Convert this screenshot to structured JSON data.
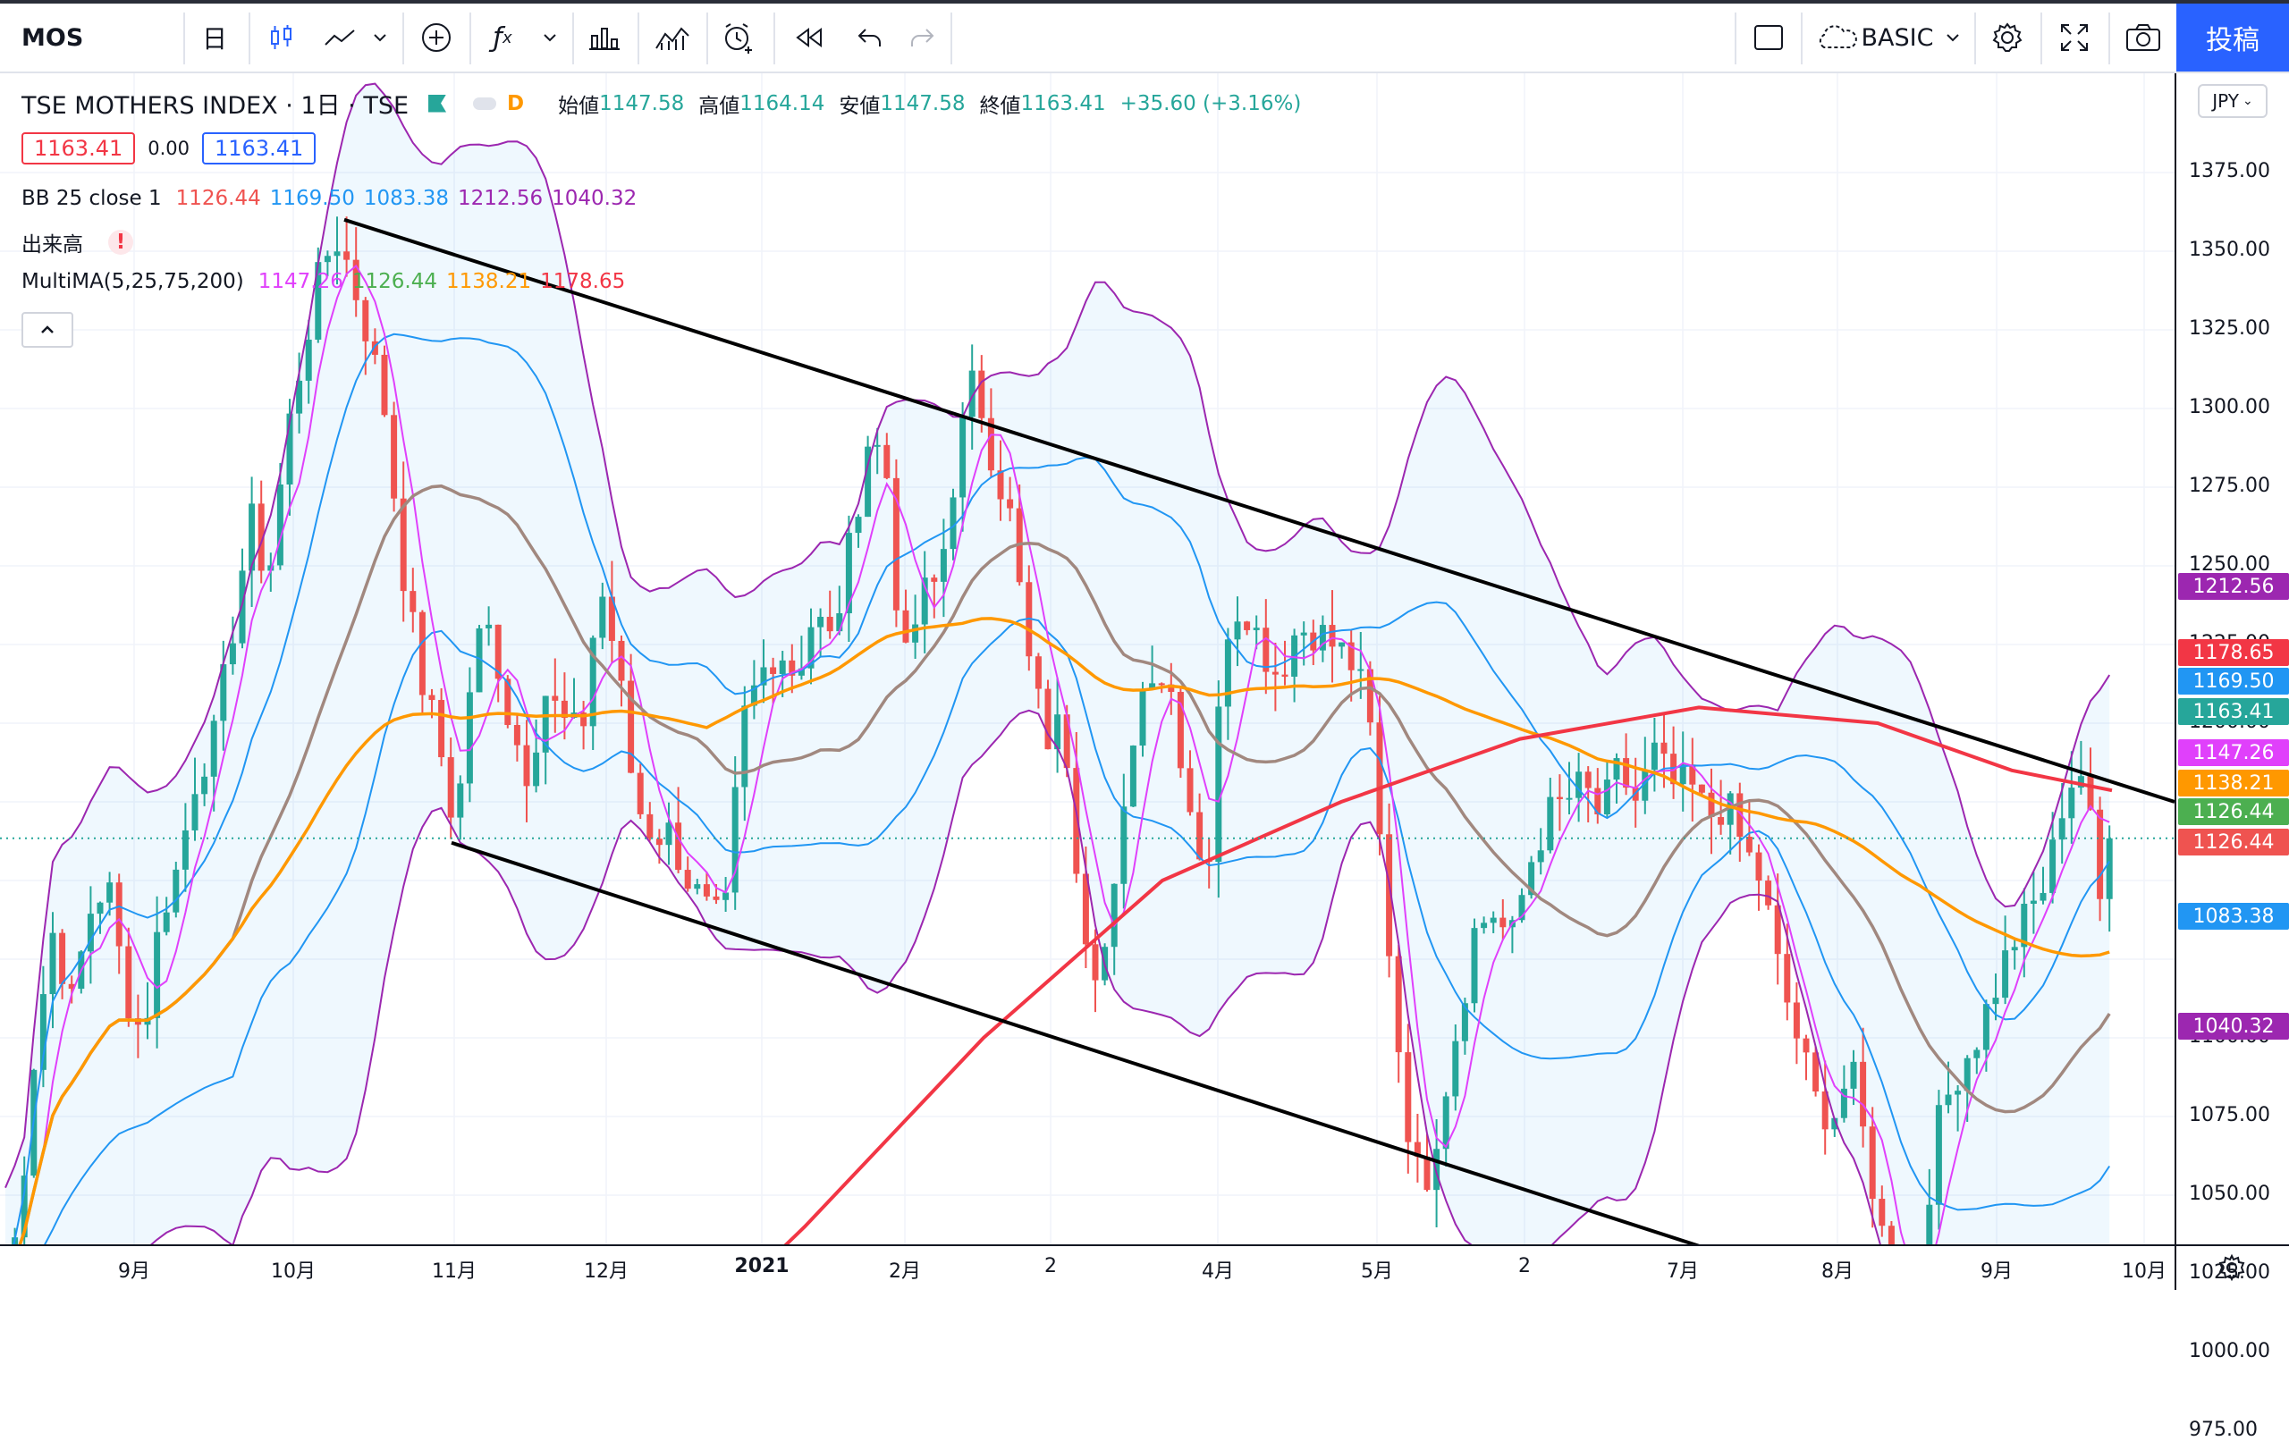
{
  "toolbar": {
    "symbol": "MOS",
    "interval": "日",
    "layout_label": "BASIC",
    "post_label": "投稿"
  },
  "legend": {
    "title": "TSE MOTHERS INDEX · 1日 · TSE",
    "interval_badge": "D",
    "ohlc": [
      {
        "label": "始値",
        "value": "1147.58"
      },
      {
        "label": "高値",
        "value": "1164.14"
      },
      {
        "label": "安値",
        "value": "1147.58"
      },
      {
        "label": "終値",
        "value": "1163.41"
      }
    ],
    "change": "+35.60 (+3.16%)",
    "bid": "1163.41",
    "spread": "0.00",
    "ask": "1163.41",
    "bb": {
      "name": "BB 25 close 1",
      "v1": "1126.44",
      "v2": "1169.50",
      "v3": "1083.38",
      "v4": "1212.56",
      "v5": "1040.32"
    },
    "volume_label": "出来高",
    "multima": {
      "name": "MultiMA(5,25,75,200)",
      "v1": "1147.26",
      "v2": "1126.44",
      "v3": "1138.21",
      "v4": "1178.65"
    }
  },
  "currency": "JPY",
  "price_axis": {
    "ticks": [
      "1375.00",
      "1350.00",
      "1325.00",
      "1300.00",
      "1275.00",
      "1250.00",
      "1225.00",
      "1200.00",
      "1100.00",
      "1075.00",
      "1050.00",
      "1025.00",
      "1000.00",
      "975.00"
    ]
  },
  "time_axis": {
    "labels": [
      "9月",
      "10月",
      "11月",
      "12月",
      "2021",
      "2月",
      "2",
      "4月",
      "5月",
      "2",
      "7月",
      "8月",
      "9月",
      "10月"
    ]
  },
  "price_tags": [
    {
      "value": "1212.56",
      "color": "#9c27b0"
    },
    {
      "value": "1178.65",
      "color": "#f23645"
    },
    {
      "value": "1169.50",
      "color": "#2196f3"
    },
    {
      "value": "1163.41",
      "color": "#26a69a"
    },
    {
      "value": "1147.26",
      "color": "#e040fb"
    },
    {
      "value": "1138.21",
      "color": "#ff9800"
    },
    {
      "value": "1126.44",
      "color": "#4caf50"
    },
    {
      "value": "1126.44",
      "color": "#ef5350"
    },
    {
      "value": "1083.38",
      "color": "#2196f3"
    },
    {
      "value": "1040.32",
      "color": "#9c27b0"
    }
  ],
  "colors": {
    "up": "#26a69a",
    "down": "#ef5350",
    "bb_upper": "#9c27b0",
    "bb_basis": "#2196f3",
    "ma5": "#e040fb",
    "ma25": "#a1887f",
    "ma75": "#ff9800",
    "ma200": "#f23645",
    "accent": "#2962ff"
  },
  "chart_data": {
    "type": "candlestick",
    "title": "TSE MOTHERS INDEX",
    "ylim": [
      962,
      1397
    ],
    "x_labels": [
      "9月",
      "10月",
      "11月",
      "12月",
      "2021",
      "2月",
      "2",
      "4月",
      "5月",
      "2",
      "7月",
      "8月",
      "9月",
      "10月"
    ],
    "close_path": [
      [
        0,
        1015
      ],
      [
        20,
        1040
      ],
      [
        40,
        1100
      ],
      [
        60,
        1135
      ],
      [
        80,
        1110
      ],
      [
        100,
        1140
      ],
      [
        120,
        1150
      ],
      [
        140,
        1115
      ],
      [
        160,
        1100
      ],
      [
        180,
        1140
      ],
      [
        200,
        1155
      ],
      [
        220,
        1185
      ],
      [
        240,
        1195
      ],
      [
        260,
        1230
      ],
      [
        280,
        1265
      ],
      [
        300,
        1245
      ],
      [
        320,
        1290
      ],
      [
        340,
        1320
      ],
      [
        360,
        1345
      ],
      [
        375,
        1355
      ],
      [
        390,
        1345
      ],
      [
        410,
        1325
      ],
      [
        430,
        1300
      ],
      [
        450,
        1250
      ],
      [
        470,
        1215
      ],
      [
        490,
        1195
      ],
      [
        510,
        1165
      ],
      [
        530,
        1225
      ],
      [
        550,
        1230
      ],
      [
        570,
        1200
      ],
      [
        590,
        1185
      ],
      [
        610,
        1210
      ],
      [
        630,
        1200
      ],
      [
        650,
        1195
      ],
      [
        670,
        1245
      ],
      [
        690,
        1220
      ],
      [
        710,
        1175
      ],
      [
        730,
        1165
      ],
      [
        750,
        1165
      ],
      [
        770,
        1150
      ],
      [
        790,
        1140
      ],
      [
        810,
        1135
      ],
      [
        830,
        1200
      ],
      [
        850,
        1215
      ],
      [
        870,
        1225
      ],
      [
        890,
        1215
      ],
      [
        910,
        1235
      ],
      [
        930,
        1225
      ],
      [
        950,
        1255
      ],
      [
        970,
        1290
      ],
      [
        990,
        1285
      ],
      [
        1010,
        1215
      ],
      [
        1030,
        1240
      ],
      [
        1050,
        1245
      ],
      [
        1070,
        1285
      ],
      [
        1090,
        1310
      ],
      [
        1110,
        1285
      ],
      [
        1130,
        1265
      ],
      [
        1150,
        1220
      ],
      [
        1170,
        1195
      ],
      [
        1190,
        1200
      ],
      [
        1210,
        1140
      ],
      [
        1230,
        1120
      ],
      [
        1250,
        1150
      ],
      [
        1270,
        1205
      ],
      [
        1290,
        1220
      ],
      [
        1310,
        1210
      ],
      [
        1330,
        1175
      ],
      [
        1350,
        1150
      ],
      [
        1370,
        1230
      ],
      [
        1390,
        1240
      ],
      [
        1410,
        1225
      ],
      [
        1430,
        1215
      ],
      [
        1450,
        1230
      ],
      [
        1470,
        1230
      ],
      [
        1490,
        1225
      ],
      [
        1510,
        1220
      ],
      [
        1530,
        1205
      ],
      [
        1550,
        1140
      ],
      [
        1570,
        1080
      ],
      [
        1590,
        1050
      ],
      [
        1610,
        1075
      ],
      [
        1630,
        1105
      ],
      [
        1650,
        1135
      ],
      [
        1670,
        1140
      ],
      [
        1690,
        1130
      ],
      [
        1710,
        1155
      ],
      [
        1730,
        1170
      ],
      [
        1750,
        1175
      ],
      [
        1770,
        1180
      ],
      [
        1790,
        1170
      ],
      [
        1810,
        1185
      ],
      [
        1830,
        1175
      ],
      [
        1850,
        1190
      ],
      [
        1870,
        1180
      ],
      [
        1890,
        1180
      ],
      [
        1910,
        1170
      ],
      [
        1930,
        1175
      ],
      [
        1950,
        1160
      ],
      [
        1970,
        1150
      ],
      [
        1990,
        1120
      ],
      [
        2010,
        1100
      ],
      [
        2030,
        1080
      ],
      [
        2050,
        1075
      ],
      [
        2070,
        1090
      ],
      [
        2090,
        1060
      ],
      [
        2110,
        1030
      ],
      [
        2130,
        1010
      ],
      [
        2150,
        1040
      ],
      [
        2170,
        1075
      ],
      [
        2190,
        1090
      ],
      [
        2210,
        1100
      ],
      [
        2230,
        1115
      ],
      [
        2250,
        1130
      ],
      [
        2270,
        1140
      ],
      [
        2290,
        1150
      ],
      [
        2310,
        1180
      ],
      [
        2330,
        1185
      ],
      [
        2350,
        1140
      ],
      [
        2362,
        1163
      ]
    ],
    "trendlines": [
      {
        "from": [
          385,
          1360
        ],
        "to": [
          2432,
          1175
        ]
      },
      {
        "from": [
          505,
          1162
        ],
        "to": [
          2432,
          985
        ]
      }
    ],
    "current_price": 1163.41,
    "series": [
      {
        "name": "BB 25 close 1",
        "values": [
          "1126.44",
          "1169.50",
          "1083.38",
          "1212.56",
          "1040.32"
        ]
      },
      {
        "name": "MultiMA(5,25,75,200)",
        "values": [
          "1147.26",
          "1126.44",
          "1138.21",
          "1178.65"
        ]
      }
    ]
  }
}
